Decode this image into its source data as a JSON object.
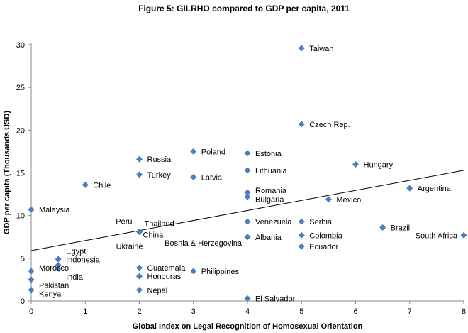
{
  "chart_data": {
    "type": "scatter",
    "title": "Figure 5: GILRHO compared to GDP per capita, 2011",
    "xlabel": "Global Index on Legal Recognition of Homosexual Orientation",
    "ylabel": "GDP per capita (Thousands USD)",
    "xlim": [
      0,
      8
    ],
    "ylim": [
      0,
      30
    ],
    "xticks": [
      "0",
      "1",
      "2",
      "3",
      "4",
      "5",
      "6",
      "7",
      "8"
    ],
    "yticks": [
      "0",
      "5",
      "10",
      "15",
      "20",
      "25",
      "30"
    ],
    "grid": false,
    "marker_color": "#4a7ebf",
    "trendline": {
      "x": [
        0,
        8
      ],
      "y": [
        5.9,
        15.3
      ]
    },
    "points": [
      {
        "label": "Taiwan",
        "x": 5,
        "y": 29.6,
        "pos": "right"
      },
      {
        "label": "Czech Rep.",
        "x": 5,
        "y": 20.7,
        "pos": "right"
      },
      {
        "label": "Russia",
        "x": 2,
        "y": 16.6,
        "pos": "right"
      },
      {
        "label": "Poland",
        "x": 3,
        "y": 17.5,
        "pos": "right"
      },
      {
        "label": "Estonia",
        "x": 4,
        "y": 17.3,
        "pos": "right"
      },
      {
        "label": "Lithuania",
        "x": 4,
        "y": 15.3,
        "pos": "right"
      },
      {
        "label": "Hungary",
        "x": 6,
        "y": 16.0,
        "pos": "right"
      },
      {
        "label": "Turkey",
        "x": 2,
        "y": 14.8,
        "pos": "right"
      },
      {
        "label": "Latvia",
        "x": 3,
        "y": 14.5,
        "pos": "right"
      },
      {
        "label": "Chile",
        "x": 1,
        "y": 13.6,
        "pos": "right"
      },
      {
        "label": "Argentina",
        "x": 7,
        "y": 13.2,
        "pos": "right"
      },
      {
        "label": "Romania",
        "x": 4,
        "y": 12.7,
        "pos": "right"
      },
      {
        "label": "Bulgaria",
        "x": 4,
        "y": 12.2,
        "pos": "right"
      },
      {
        "label": "Mexico",
        "x": 5.5,
        "y": 11.9,
        "pos": "right"
      },
      {
        "label": "Malaysia",
        "x": 0,
        "y": 10.7,
        "pos": "right"
      },
      {
        "label": "Venezuela",
        "x": 4,
        "y": 9.3,
        "pos": "right"
      },
      {
        "label": "Serbia",
        "x": 5,
        "y": 9.3,
        "pos": "right"
      },
      {
        "label": "Brazil",
        "x": 6.5,
        "y": 8.6,
        "pos": "right"
      },
      {
        "label": "South Africa",
        "x": 8,
        "y": 7.7,
        "pos": "left"
      },
      {
        "label": "Peru",
        "x": 2,
        "y": 8.1,
        "pos": "up-left"
      },
      {
        "label": "Thailand",
        "x": 2,
        "y": 8.1,
        "pos": "up-right"
      },
      {
        "label": "China",
        "x": 2,
        "y": 8.1,
        "pos": "down-right"
      },
      {
        "label": "Ukraine",
        "x": 2,
        "y": 8.1,
        "pos": "down-left"
      },
      {
        "label": "Albania",
        "x": 4,
        "y": 7.5,
        "pos": "right"
      },
      {
        "label": "Bosnia & Herzegovina",
        "x": 4,
        "y": 7.5,
        "pos": "left-low"
      },
      {
        "label": "Colombia",
        "x": 5,
        "y": 7.7,
        "pos": "right"
      },
      {
        "label": "Ecuador",
        "x": 5,
        "y": 6.4,
        "pos": "right"
      },
      {
        "label": "Egypt",
        "x": 0.5,
        "y": 4.9,
        "pos": "right"
      },
      {
        "label": "Indonesia",
        "x": 0.5,
        "y": 4.2,
        "pos": "right"
      },
      {
        "label": "India",
        "x": 0.5,
        "y": 3.8,
        "pos": "right"
      },
      {
        "label": "Morocco",
        "x": 0,
        "y": 3.5,
        "pos": "right"
      },
      {
        "label": "Pakistan",
        "x": 0,
        "y": 2.5,
        "pos": "right"
      },
      {
        "label": "Kenya",
        "x": 0,
        "y": 1.3,
        "pos": "right"
      },
      {
        "label": "Guatemala",
        "x": 2,
        "y": 3.9,
        "pos": "right"
      },
      {
        "label": "Honduras",
        "x": 2,
        "y": 2.9,
        "pos": "right"
      },
      {
        "label": "Philippines",
        "x": 3,
        "y": 3.5,
        "pos": "right"
      },
      {
        "label": "Nepal",
        "x": 2,
        "y": 1.3,
        "pos": "right"
      },
      {
        "label": "El Salvador",
        "x": 4,
        "y": 0.3,
        "pos": "right"
      }
    ]
  }
}
